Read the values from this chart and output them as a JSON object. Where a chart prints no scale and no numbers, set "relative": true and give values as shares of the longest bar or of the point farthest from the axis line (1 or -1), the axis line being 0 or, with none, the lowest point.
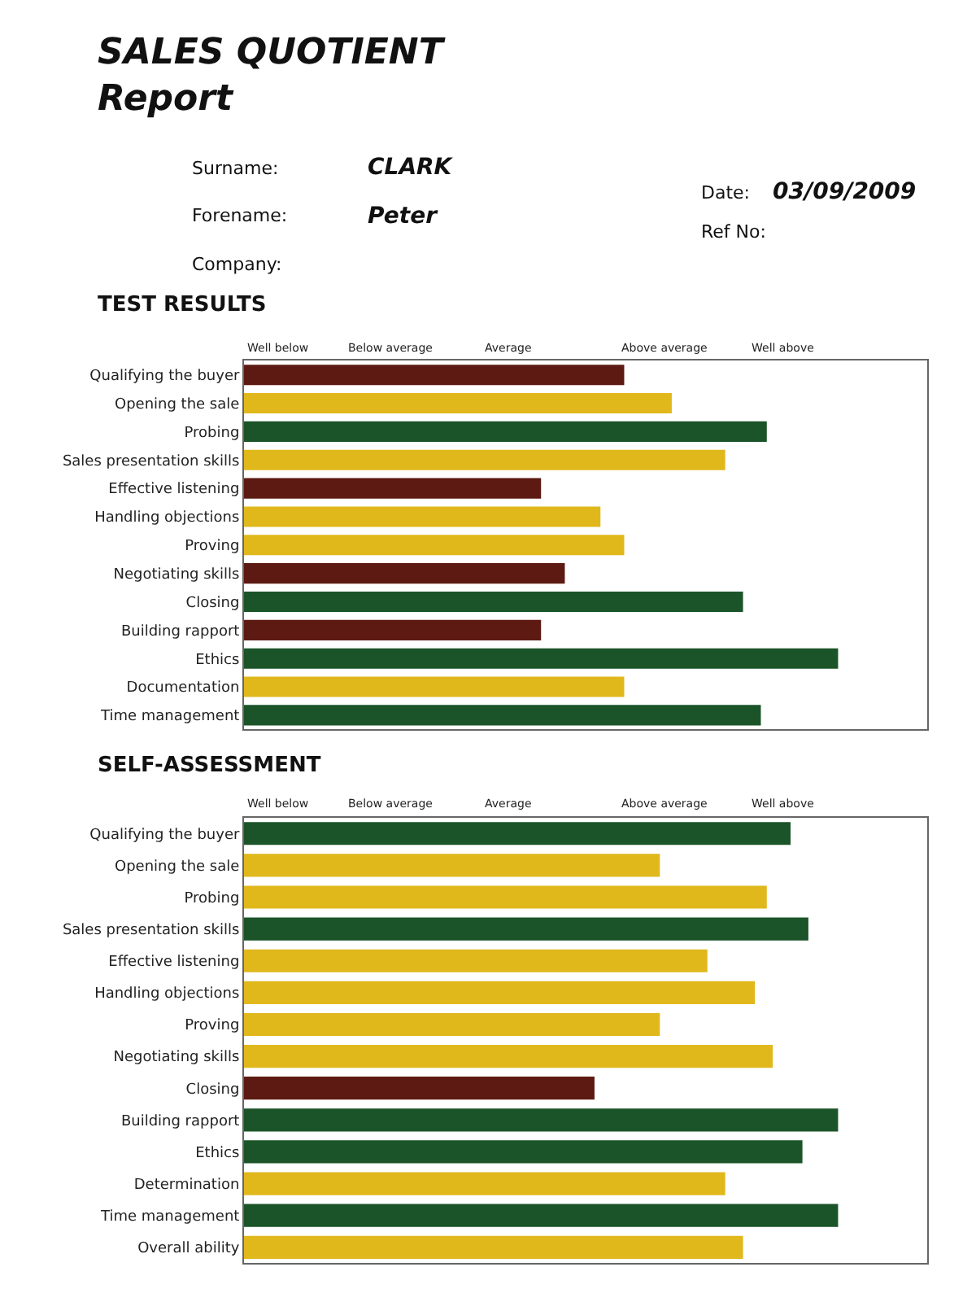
{
  "chart_data": [
    {
      "type": "bar",
      "orientation": "horizontal",
      "relative": true,
      "title": "TEST RESULTS",
      "annotations": [
        "SALES QUOTIENT\nReport",
        "Surname:",
        "CLARK",
        "Forename:",
        "Peter",
        "Company:",
        "Date:",
        "03/09/2009",
        "Ref No:",
        "Well below",
        "Below average",
        "Average",
        "Above average",
        "Well above"
      ],
      "categories": [
        "Qualifying the buyer",
        "Opening the sale",
        "Probing",
        "Sales presentation skills",
        "Effective listening",
        "Handling objections",
        "Proving",
        "Negotiating skills",
        "Closing",
        "Building rapport",
        "Ethics",
        "Documentation",
        "Time management"
      ],
      "values": [
        0.64,
        0.72,
        0.88,
        0.81,
        0.5,
        0.6,
        0.64,
        0.54,
        0.84,
        0.5,
        1.0,
        0.64,
        0.87
      ],
      "colors": [
        "#5c1a12",
        "#e0b81c",
        "#1a5428",
        "#e0b81c",
        "#5c1a12",
        "#e0b81c",
        "#e0b81c",
        "#5c1a12",
        "#1a5428",
        "#5c1a12",
        "#1a5428",
        "#e0b81c",
        "#1a5428"
      ],
      "legend": false
    },
    {
      "type": "bar",
      "orientation": "horizontal",
      "relative": true,
      "title": "SELF-ASSESSMENT",
      "annotations": [
        "Well below",
        "Below average",
        "Average",
        "Above average",
        "Well above"
      ],
      "categories": [
        "Qualifying the buyer",
        "Opening the sale",
        "Probing",
        "Sales presentation skills",
        "Effective listening",
        "Handling objections",
        "Proving",
        "Negotiating skills",
        "Closing",
        "Building rapport",
        "Ethics",
        "Determination",
        "Time management",
        "Overall ability"
      ],
      "values": [
        0.92,
        0.7,
        0.88,
        0.95,
        0.78,
        0.86,
        0.7,
        0.89,
        0.59,
        1.0,
        0.94,
        0.81,
        1.0,
        0.84
      ],
      "colors": [
        "#1a5428",
        "#e0b81c",
        "#e0b81c",
        "#1a5428",
        "#e0b81c",
        "#e0b81c",
        "#e0b81c",
        "#e0b81c",
        "#5c1a12",
        "#1a5428",
        "#1a5428",
        "#e0b81c",
        "#1a5428",
        "#e0b81c"
      ],
      "legend": false
    }
  ]
}
